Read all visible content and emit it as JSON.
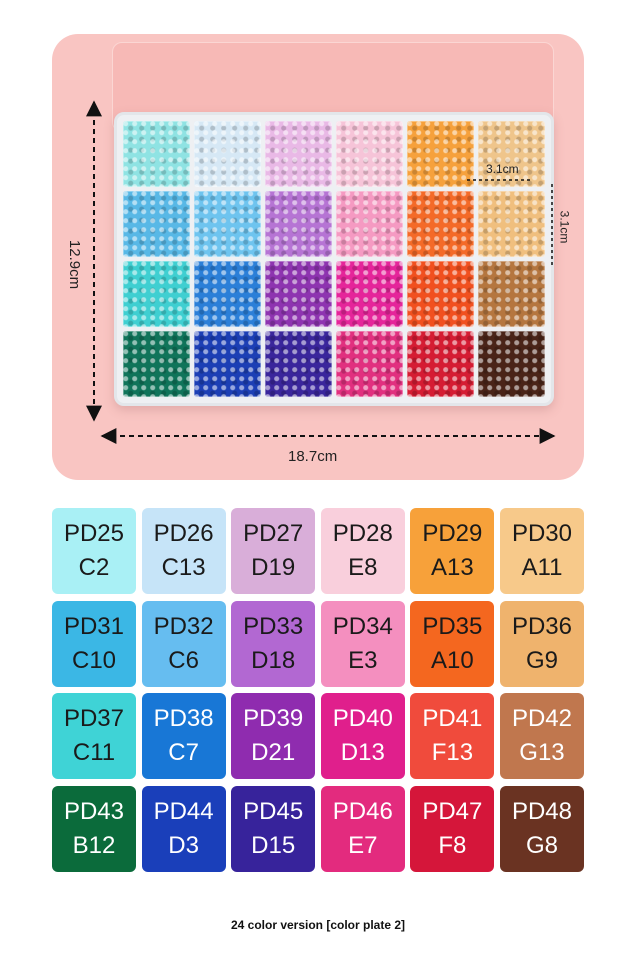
{
  "dimensions": {
    "width_label": "18.7cm",
    "height_label": "12.9cm",
    "cell_width_label": "3.1cm",
    "cell_height_label": "3.1cm"
  },
  "swatches": [
    {
      "code": "PD25",
      "sub": "C2",
      "color": "#a9f0f5",
      "text_color": "#1a1a1a"
    },
    {
      "code": "PD26",
      "sub": "C13",
      "color": "#c6e4f8",
      "text_color": "#1a1a1a"
    },
    {
      "code": "PD27",
      "sub": "D19",
      "color": "#d9aed9",
      "text_color": "#1a1a1a"
    },
    {
      "code": "PD28",
      "sub": "E8",
      "color": "#f9cfdc",
      "text_color": "#1a1a1a"
    },
    {
      "code": "PD29",
      "sub": "A13",
      "color": "#f7a13a",
      "text_color": "#1a1a1a"
    },
    {
      "code": "PD30",
      "sub": "A11",
      "color": "#f7c98a",
      "text_color": "#1a1a1a"
    },
    {
      "code": "PD31",
      "sub": "C10",
      "color": "#3bb7e5",
      "text_color": "#1a1a1a"
    },
    {
      "code": "PD32",
      "sub": "C6",
      "color": "#66bdf0",
      "text_color": "#1a1a1a"
    },
    {
      "code": "PD33",
      "sub": "D18",
      "color": "#b268d2",
      "text_color": "#1a1a1a"
    },
    {
      "code": "PD34",
      "sub": "E3",
      "color": "#f48fbf",
      "text_color": "#1a1a1a"
    },
    {
      "code": "PD35",
      "sub": "A10",
      "color": "#f4671f",
      "text_color": "#1a1a1a"
    },
    {
      "code": "PD36",
      "sub": "G9",
      "color": "#efb36d",
      "text_color": "#1a1a1a"
    },
    {
      "code": "PD37",
      "sub": "C11",
      "color": "#3fd3d6",
      "text_color": "#1a1a1a"
    },
    {
      "code": "PD38",
      "sub": "C7",
      "color": "#1877d6",
      "text_color": "#ffffff"
    },
    {
      "code": "PD39",
      "sub": "D21",
      "color": "#8f2caf",
      "text_color": "#ffffff"
    },
    {
      "code": "PD40",
      "sub": "D13",
      "color": "#e01f8c",
      "text_color": "#ffffff"
    },
    {
      "code": "PD41",
      "sub": "F13",
      "color": "#f04b3c",
      "text_color": "#ffffff"
    },
    {
      "code": "PD42",
      "sub": "G13",
      "color": "#c0774e",
      "text_color": "#ffffff"
    },
    {
      "code": "PD43",
      "sub": "B12",
      "color": "#0b6b3b",
      "text_color": "#ffffff"
    },
    {
      "code": "PD44",
      "sub": "D3",
      "color": "#1a3fba",
      "text_color": "#ffffff"
    },
    {
      "code": "PD45",
      "sub": "D15",
      "color": "#37239b",
      "text_color": "#ffffff"
    },
    {
      "code": "PD46",
      "sub": "E7",
      "color": "#e32b7e",
      "text_color": "#ffffff"
    },
    {
      "code": "PD47",
      "sub": "F8",
      "color": "#d5163a",
      "text_color": "#ffffff"
    },
    {
      "code": "PD48",
      "sub": "G8",
      "color": "#6a3322",
      "text_color": "#ffffff"
    }
  ],
  "tray_colors": [
    "#8fe3e3",
    "#d6e8f5",
    "#e9b9e6",
    "#f6c4d8",
    "#f6a13c",
    "#efc58b",
    "#58b8e6",
    "#6ec4ef",
    "#b674d4",
    "#f59ac2",
    "#f46a28",
    "#f0bf7e",
    "#3fcfd1",
    "#2b7fd8",
    "#8e34b0",
    "#e5259a",
    "#f1501f",
    "#b5763f",
    "#10745a",
    "#1c3fb5",
    "#3a269c",
    "#e1307f",
    "#d51c33",
    "#4a2418"
  ],
  "caption": "24 color version [color plate 2]"
}
